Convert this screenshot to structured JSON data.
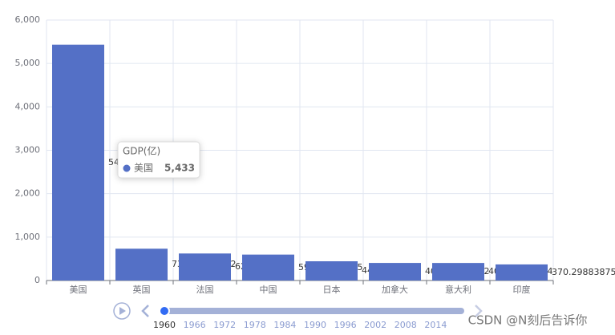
{
  "chart_data": {
    "type": "bar",
    "categories": [
      "美国",
      "英国",
      "法国",
      "中国",
      "日本",
      "加拿大",
      "意大利",
      "印度"
    ],
    "series": [
      {
        "name": "GDP(亿)",
        "color": "#5470c6",
        "values": [
          5433,
          732.33967692,
          622.25478,
          597.16467625,
          443.0734295,
          404.61721692,
          403.85288344,
          370.29883875
        ]
      }
    ],
    "ylim": [
      0,
      6000
    ],
    "yticks": [
      0,
      {
        "value": 1000,
        "label": "1,000"
      },
      {
        "value": 2000,
        "label": "2,000"
      },
      {
        "value": 3000,
        "label": "3,000"
      },
      {
        "value": 4000,
        "label": "4,000"
      },
      {
        "value": 5000,
        "label": "5,000"
      },
      {
        "value": 6000,
        "label": "6,000"
      }
    ],
    "grid": true,
    "tooltip": {
      "title": "GDP(亿)",
      "name": "美国",
      "value": "5,433"
    },
    "timeline": [
      "1960",
      "1966",
      "1972",
      "1978",
      "1984",
      "1990",
      "1996",
      "2002",
      "2008",
      "2014"
    ],
    "watermark": "CSDN @N刻后告诉你"
  }
}
